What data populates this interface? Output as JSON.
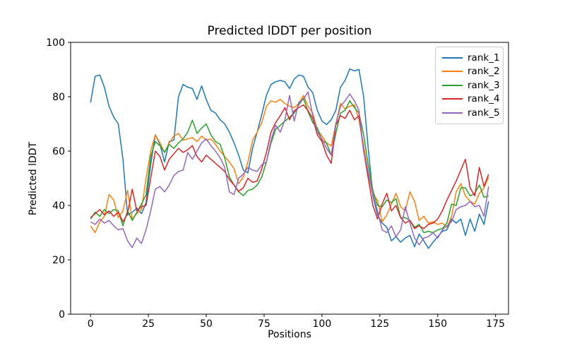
{
  "chart_data": {
    "type": "line",
    "title": "Predicted lDDT per position",
    "xlabel": "Positions",
    "ylabel": "Predicted lDDT",
    "xlim": [
      -8.6,
      180.6
    ],
    "ylim": [
      0,
      100
    ],
    "x_ticks": [
      0,
      25,
      50,
      75,
      100,
      125,
      150,
      175
    ],
    "y_ticks": [
      0,
      20,
      40,
      60,
      80,
      100
    ],
    "grid": false,
    "legend_position": "upper right",
    "x": [
      0,
      2,
      4,
      6,
      8,
      10,
      12,
      14,
      16,
      18,
      20,
      22,
      24,
      26,
      28,
      30,
      32,
      34,
      36,
      38,
      40,
      42,
      44,
      46,
      48,
      50,
      52,
      54,
      56,
      58,
      60,
      62,
      64,
      66,
      68,
      70,
      72,
      74,
      76,
      78,
      80,
      82,
      84,
      86,
      88,
      90,
      92,
      94,
      96,
      98,
      100,
      102,
      104,
      106,
      108,
      110,
      112,
      114,
      116,
      118,
      120,
      122,
      124,
      126,
      128,
      130,
      132,
      134,
      136,
      138,
      140,
      142,
      144,
      146,
      148,
      150,
      152,
      154,
      156,
      158,
      160,
      162,
      164,
      166,
      168,
      170,
      172
    ],
    "series": [
      {
        "name": "rank_1",
        "color": "#1f77b4",
        "values": [
          77.9,
          87.5,
          88.0,
          83.5,
          76.5,
          72.5,
          70.0,
          57.0,
          36.5,
          37.5,
          39.0,
          37.0,
          41.0,
          55.0,
          66.0,
          62.5,
          56.0,
          63.5,
          64.0,
          80.0,
          84.5,
          83.5,
          83.0,
          79.0,
          84.0,
          79.0,
          75.0,
          74.0,
          71.5,
          70.0,
          67.0,
          63.0,
          58.5,
          53.0,
          52.0,
          61.0,
          67.0,
          73.5,
          80.5,
          84.5,
          85.5,
          86.0,
          85.5,
          83.0,
          86.5,
          88.0,
          87.5,
          83.5,
          81.5,
          75.0,
          71.0,
          69.8,
          71.5,
          75.0,
          83.5,
          86.0,
          90.2,
          89.5,
          90.0,
          80.0,
          61.0,
          43.5,
          36.5,
          33.5,
          32.0,
          27.0,
          28.5,
          26.5,
          28.0,
          29.0,
          24.8,
          29.5,
          27.0,
          24.2,
          26.5,
          28.5,
          30.5,
          31.0,
          35.0,
          33.5,
          35.0,
          29.0,
          35.0,
          30.5,
          36.8,
          33.0,
          41.5
        ]
      },
      {
        "name": "rank_2",
        "color": "#ff7f0e",
        "values": [
          32.5,
          30.0,
          34.0,
          36.0,
          44.0,
          42.0,
          35.5,
          38.0,
          45.5,
          35.0,
          37.0,
          38.5,
          50.0,
          60.0,
          66.0,
          63.0,
          59.5,
          63.0,
          65.5,
          66.5,
          64.0,
          64.5,
          65.0,
          63.5,
          65.5,
          64.0,
          64.5,
          62.5,
          60.0,
          58.0,
          56.0,
          53.5,
          48.0,
          50.5,
          56.0,
          64.0,
          67.0,
          70.5,
          76.5,
          78.5,
          78.0,
          79.0,
          77.5,
          76.5,
          76.0,
          77.5,
          80.5,
          76.5,
          74.0,
          68.0,
          65.5,
          63.0,
          61.9,
          70.0,
          77.5,
          75.5,
          76.5,
          77.0,
          71.5,
          62.0,
          52.0,
          44.0,
          42.0,
          34.0,
          36.5,
          40.5,
          44.5,
          39.5,
          38.0,
          45.0,
          41.5,
          34.5,
          36.0,
          33.5,
          34.0,
          33.0,
          33.5,
          32.0,
          36.0,
          45.0,
          48.0,
          43.5,
          41.5,
          40.5,
          44.5,
          46.5,
          50.5
        ]
      },
      {
        "name": "rank_3",
        "color": "#2ca02c",
        "values": [
          35.0,
          37.5,
          36.0,
          38.5,
          37.0,
          38.5,
          38.0,
          32.5,
          38.0,
          34.5,
          37.5,
          40.5,
          44.0,
          58.0,
          63.5,
          62.0,
          59.5,
          62.5,
          61.0,
          63.0,
          64.5,
          67.0,
          71.4,
          66.5,
          68.5,
          70.0,
          66.0,
          63.5,
          62.5,
          57.5,
          50.5,
          47.5,
          45.0,
          43.6,
          45.5,
          46.0,
          47.5,
          50.5,
          56.0,
          63.0,
          68.0,
          69.5,
          71.0,
          72.5,
          74.0,
          77.0,
          79.5,
          74.5,
          70.5,
          68.5,
          64.0,
          62.9,
          58.5,
          66.5,
          74.0,
          75.0,
          78.5,
          76.0,
          74.0,
          66.0,
          55.0,
          45.5,
          40.0,
          39.5,
          42.0,
          41.0,
          42.5,
          35.5,
          35.5,
          34.5,
          32.0,
          33.0,
          30.0,
          30.5,
          30.0,
          31.0,
          31.5,
          33.5,
          40.5,
          40.0,
          46.5,
          46.5,
          43.5,
          44.5,
          47.5,
          43.0,
          43.5
        ]
      },
      {
        "name": "rank_4",
        "color": "#d62728",
        "values": [
          35.5,
          37.0,
          38.5,
          36.5,
          38.0,
          36.0,
          37.5,
          34.0,
          37.0,
          46.0,
          38.0,
          39.5,
          40.0,
          50.0,
          60.0,
          58.0,
          53.0,
          57.0,
          59.0,
          61.0,
          59.5,
          60.5,
          62.0,
          58.0,
          56.0,
          58.5,
          57.0,
          55.5,
          54.0,
          52.5,
          49.5,
          47.5,
          45.2,
          46.5,
          50.0,
          48.5,
          49.0,
          53.5,
          59.5,
          67.0,
          70.5,
          73.0,
          76.0,
          71.5,
          74.8,
          76.0,
          77.0,
          74.8,
          72.0,
          66.0,
          63.5,
          58.5,
          55.5,
          69.5,
          73.0,
          72.0,
          75.0,
          71.5,
          73.0,
          60.0,
          50.0,
          40.0,
          35.0,
          40.5,
          44.5,
          38.0,
          40.0,
          35.5,
          33.5,
          34.5,
          31.5,
          32.5,
          31.5,
          33.0,
          33.5,
          35.0,
          38.0,
          42.0,
          45.5,
          49.0,
          53.0,
          57.0,
          46.5,
          43.5,
          54.0,
          47.0,
          51.5
        ]
      },
      {
        "name": "rank_5",
        "color": "#9467bd",
        "values": [
          34.0,
          33.0,
          35.0,
          33.5,
          34.5,
          32.5,
          31.0,
          31.5,
          27.0,
          24.5,
          28.0,
          26.0,
          31.0,
          38.0,
          46.0,
          47.0,
          45.0,
          47.5,
          51.0,
          52.5,
          53.0,
          59.5,
          57.0,
          60.0,
          63.0,
          64.5,
          62.0,
          60.0,
          57.5,
          54.0,
          45.0,
          44.0,
          50.0,
          51.5,
          54.0,
          53.0,
          52.5,
          55.0,
          56.0,
          64.0,
          69.5,
          67.0,
          71.5,
          80.5,
          71.0,
          78.0,
          79.0,
          81.8,
          73.0,
          67.0,
          64.5,
          61.0,
          58.5,
          70.0,
          76.5,
          78.5,
          81.0,
          78.5,
          75.0,
          60.0,
          52.0,
          44.0,
          38.0,
          31.0,
          30.0,
          32.5,
          28.5,
          31.0,
          39.5,
          33.5,
          28.0,
          25.5,
          28.0,
          28.5,
          30.0,
          28.0,
          31.0,
          32.5,
          34.0,
          38.5,
          39.5,
          40.0,
          41.5,
          39.5,
          40.0,
          36.0,
          47.0
        ]
      }
    ]
  }
}
